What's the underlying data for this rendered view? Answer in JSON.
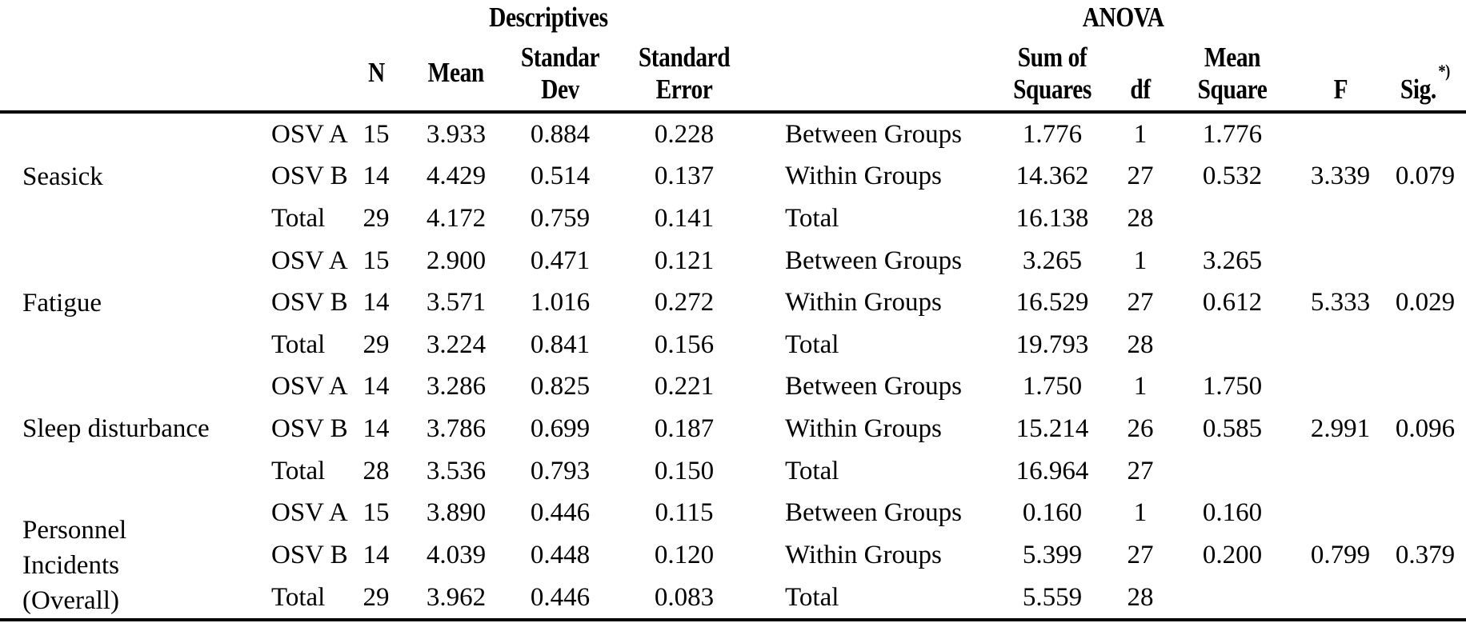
{
  "page": {
    "background_color": "#ffffff",
    "text_color": "#000000",
    "rule_color": "#000000"
  },
  "table": {
    "section_titles": {
      "descriptives": "Descriptives",
      "anova": "ANOVA"
    },
    "headers": {
      "n": "N",
      "mean": "Mean",
      "standar_dev": [
        "Standar",
        "Dev"
      ],
      "standard_error": [
        "Standard",
        "Error"
      ],
      "sum_of_squares": [
        "Sum of",
        "Squares"
      ],
      "df": "df",
      "mean_square": [
        "Mean",
        "Square"
      ],
      "f": "F",
      "sig": "Sig.",
      "sig_marker": "*)"
    },
    "groups": [
      {
        "factor_lines": [
          "Seasick"
        ],
        "rows": [
          {
            "group": "OSV A",
            "n": "15",
            "mean": "3.933",
            "sd": "0.884",
            "se": "0.228",
            "source": "Between Groups",
            "ss": "1.776",
            "df": "1",
            "ms": "1.776",
            "f": "",
            "sig": ""
          },
          {
            "group": "OSV B",
            "n": "14",
            "mean": "4.429",
            "sd": "0.514",
            "se": "0.137",
            "source": "Within Groups",
            "ss": "14.362",
            "df": "27",
            "ms": "0.532",
            "f": "3.339",
            "sig": "0.079"
          },
          {
            "group": "Total",
            "n": "29",
            "mean": "4.172",
            "sd": "0.759",
            "se": "0.141",
            "source": "Total",
            "ss": "16.138",
            "df": "28",
            "ms": "",
            "f": "",
            "sig": ""
          }
        ]
      },
      {
        "factor_lines": [
          "Fatigue"
        ],
        "rows": [
          {
            "group": "OSV A",
            "n": "15",
            "mean": "2.900",
            "sd": "0.471",
            "se": "0.121",
            "source": "Between Groups",
            "ss": "3.265",
            "df": "1",
            "ms": "3.265",
            "f": "",
            "sig": ""
          },
          {
            "group": "OSV B",
            "n": "14",
            "mean": "3.571",
            "sd": "1.016",
            "se": "0.272",
            "source": "Within Groups",
            "ss": "16.529",
            "df": "27",
            "ms": "0.612",
            "f": "5.333",
            "sig": "0.029"
          },
          {
            "group": "Total",
            "n": "29",
            "mean": "3.224",
            "sd": "0.841",
            "se": "0.156",
            "source": "Total",
            "ss": "19.793",
            "df": "28",
            "ms": "",
            "f": "",
            "sig": ""
          }
        ]
      },
      {
        "factor_lines": [
          "Sleep disturbance"
        ],
        "rows": [
          {
            "group": "OSV A",
            "n": "14",
            "mean": "3.286",
            "sd": "0.825",
            "se": "0.221",
            "source": "Between Groups",
            "ss": "1.750",
            "df": "1",
            "ms": "1.750",
            "f": "",
            "sig": ""
          },
          {
            "group": "OSV B",
            "n": "14",
            "mean": "3.786",
            "sd": "0.699",
            "se": "0.187",
            "source": "Within Groups",
            "ss": "15.214",
            "df": "26",
            "ms": "0.585",
            "f": "2.991",
            "sig": "0.096"
          },
          {
            "group": "Total",
            "n": "28",
            "mean": "3.536",
            "sd": "0.793",
            "se": "0.150",
            "source": "Total",
            "ss": "16.964",
            "df": "27",
            "ms": "",
            "f": "",
            "sig": ""
          }
        ]
      },
      {
        "factor_lines": [
          "Personnel",
          "Incidents",
          "(Overall)"
        ],
        "rows": [
          {
            "group": "OSV A",
            "n": "15",
            "mean": "3.890",
            "sd": "0.446",
            "se": "0.115",
            "source": "Between Groups",
            "ss": "0.160",
            "df": "1",
            "ms": "0.160",
            "f": "",
            "sig": ""
          },
          {
            "group": "OSV B",
            "n": "14",
            "mean": "4.039",
            "sd": "0.448",
            "se": "0.120",
            "source": "Within Groups",
            "ss": "5.399",
            "df": "27",
            "ms": "0.200",
            "f": "0.799",
            "sig": "0.379"
          },
          {
            "group": "Total",
            "n": "29",
            "mean": "3.962",
            "sd": "0.446",
            "se": "0.083",
            "source": "Total",
            "ss": "5.559",
            "df": "28",
            "ms": "",
            "f": "",
            "sig": ""
          }
        ]
      }
    ]
  }
}
